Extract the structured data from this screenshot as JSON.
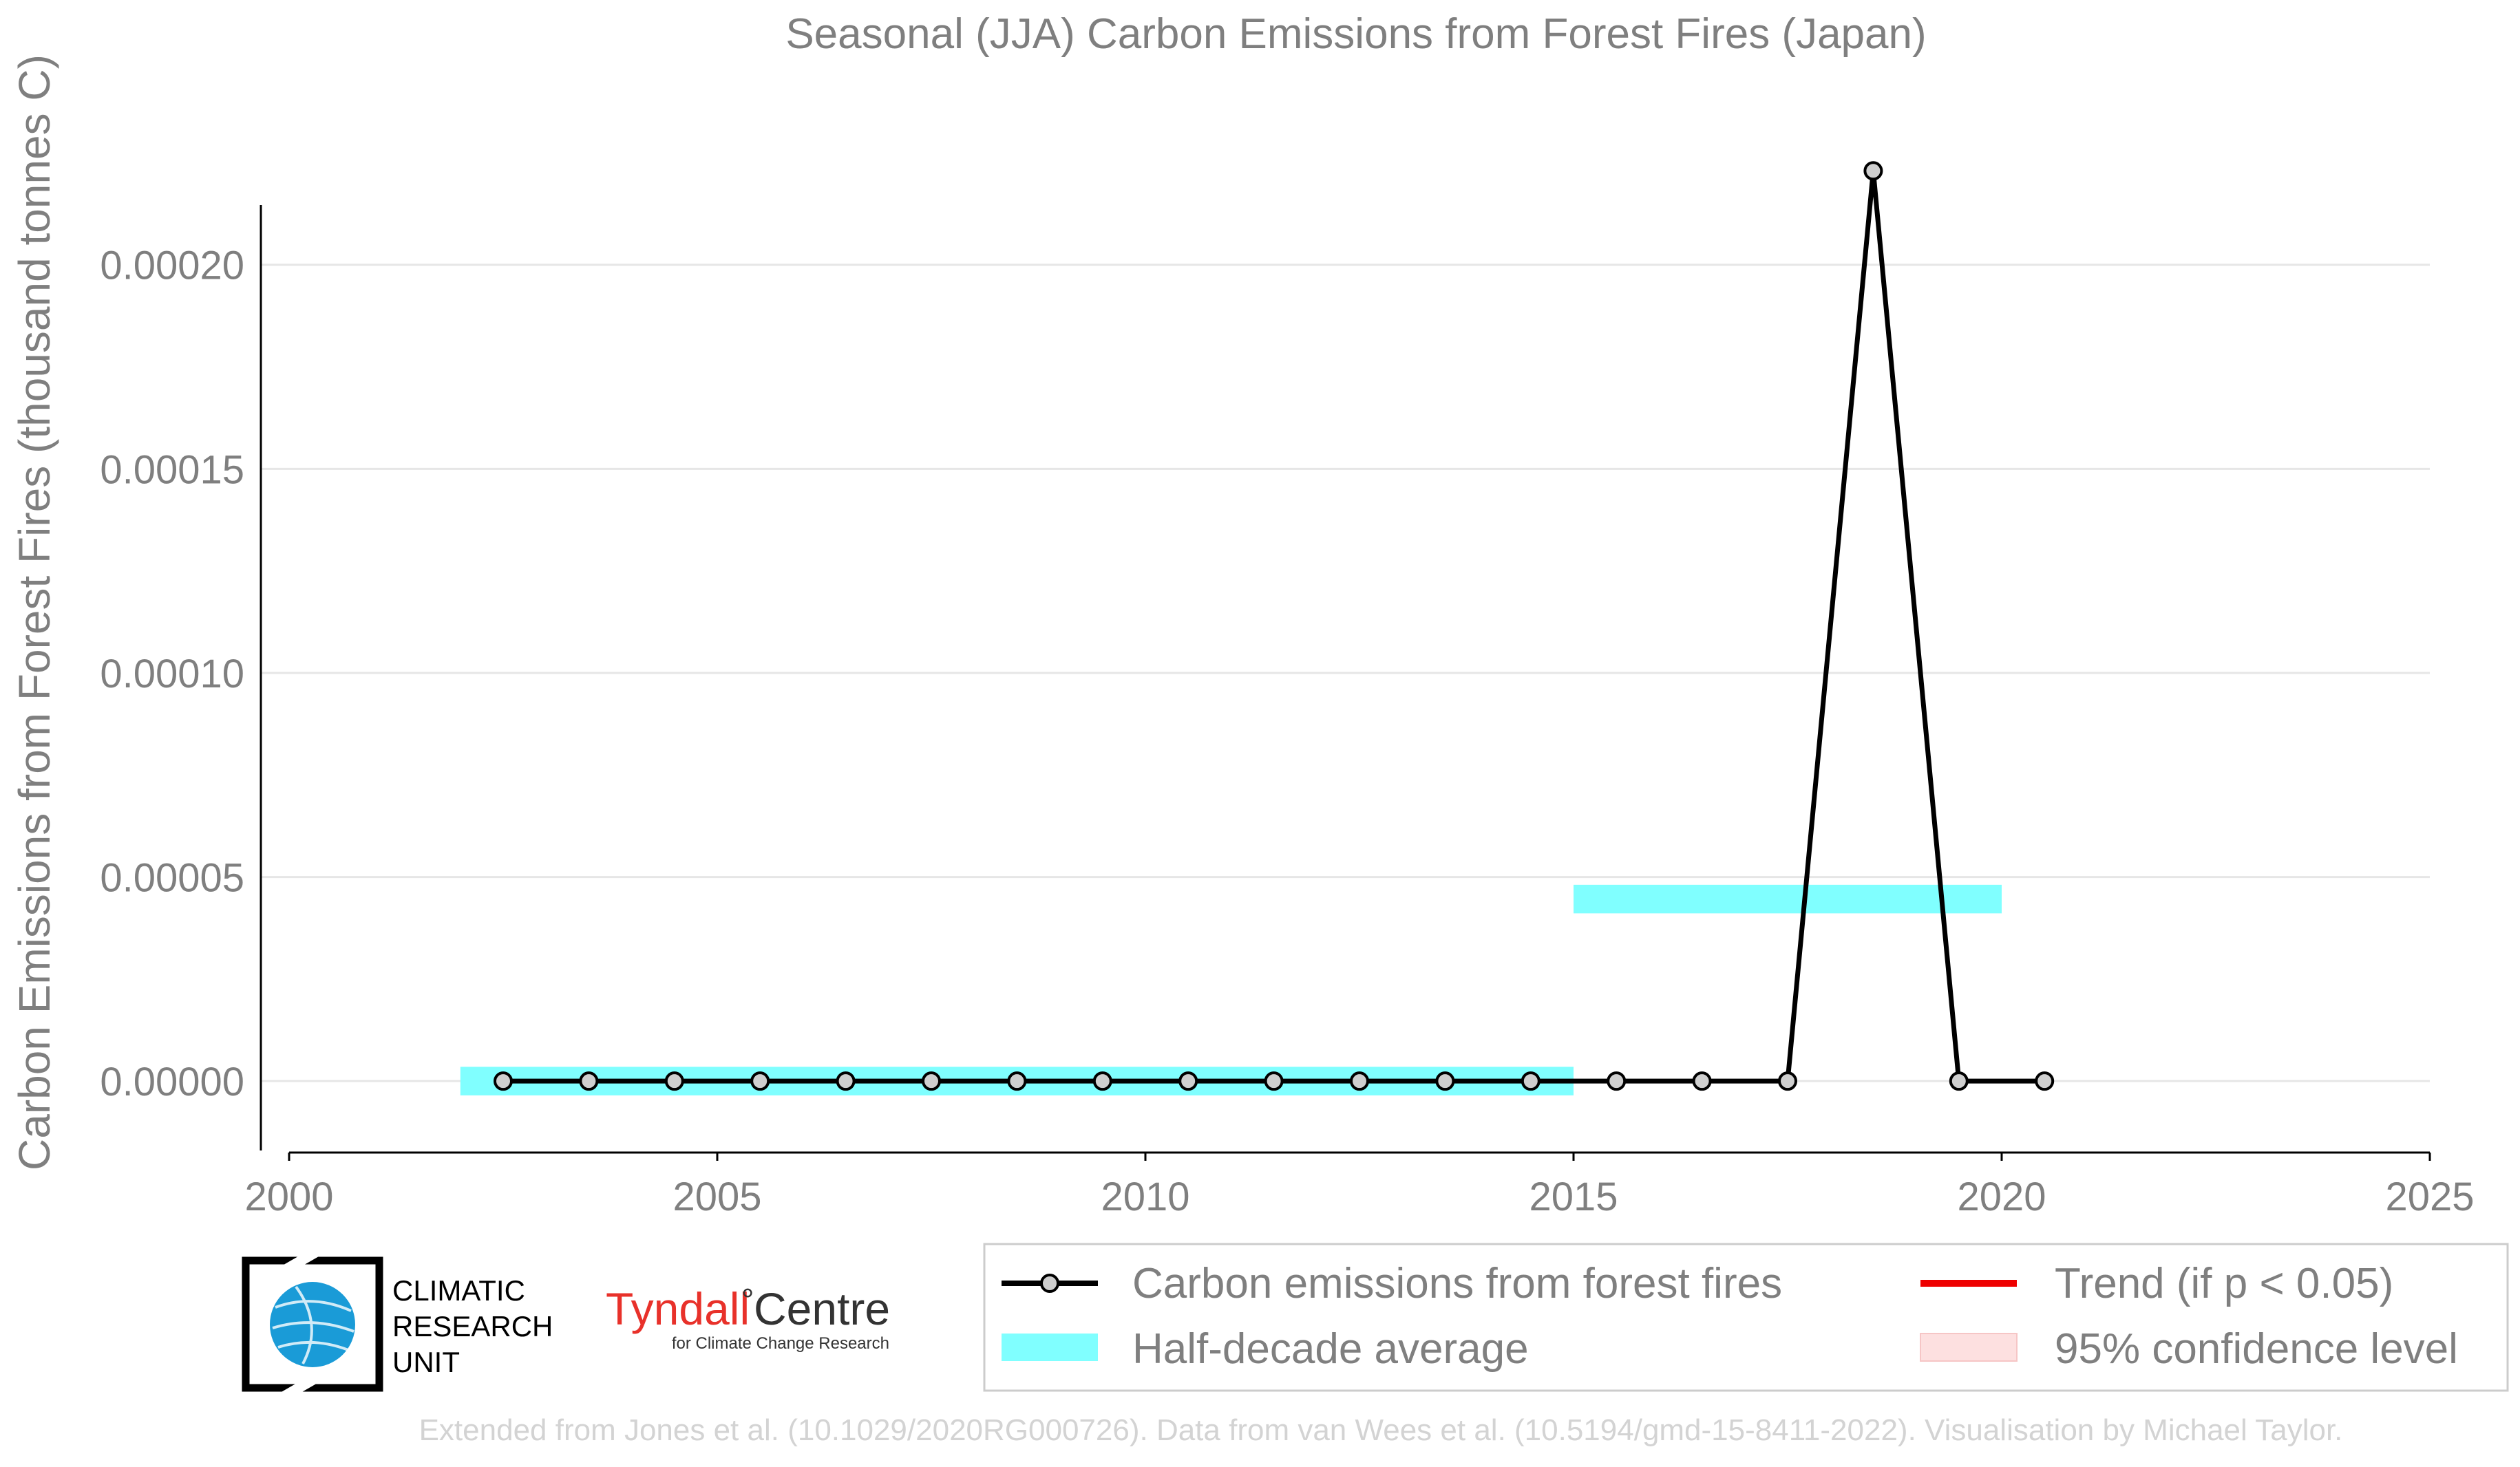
{
  "chart_data": {
    "type": "line",
    "title": "Seasonal (JJA) Carbon Emissions from Forest Fires (Japan)",
    "xlabel": "",
    "ylabel": "Carbon Emissions from Forest Fires (thousand tonnes C)",
    "xlim": [
      2000,
      2025
    ],
    "ylim": [
      -1.75e-05,
      0.000248
    ],
    "x_ticks": [
      "2000",
      "2005",
      "2010",
      "2015",
      "2020",
      "2025"
    ],
    "y_ticks": [
      "0.00000",
      "0.00005",
      "0.00010",
      "0.00015",
      "0.00020"
    ],
    "grid": "horizontal",
    "legend_position": "bottom-right",
    "series": [
      {
        "name": "Carbon emissions from forest fires",
        "color": "#000000",
        "marker": "circle",
        "x": [
          2002.5,
          2003.5,
          2004.5,
          2005.5,
          2006.5,
          2007.5,
          2008.5,
          2009.5,
          2010.5,
          2011.5,
          2012.5,
          2013.5,
          2014.5,
          2015.5,
          2016.5,
          2017.5,
          2018.5,
          2019.5,
          2020.5
        ],
        "y": [
          0,
          0,
          0,
          0,
          0,
          0,
          0,
          0,
          0,
          0,
          0,
          0,
          0,
          0,
          0,
          0,
          0.000223,
          0,
          0
        ]
      }
    ],
    "half_decade_average": {
      "name": "Half-decade average",
      "color": "#80ffff",
      "segments": [
        {
          "x_start": 2002,
          "x_end": 2015,
          "value": 0
        },
        {
          "x_start": 2015,
          "x_end": 2020,
          "value": 4.46e-05
        }
      ]
    },
    "legend": [
      {
        "label": "Carbon emissions from forest fires",
        "symbol": "line-marker",
        "color": "#000000"
      },
      {
        "label": "Half-decade average",
        "symbol": "patch",
        "color": "#80ffff"
      },
      {
        "label": "Trend (if p < 0.05)",
        "symbol": "line",
        "color": "#ee0000"
      },
      {
        "label": "95% confidence level",
        "symbol": "patch",
        "color": "#fde0e0"
      }
    ]
  },
  "logos": {
    "cru": [
      "CLIMATIC",
      "RESEARCH",
      "UNIT"
    ],
    "tyndall_name": "Tyndall",
    "tyndall_degree": "°",
    "tyndall_centre": "Centre",
    "tyndall_sub": "for Climate Change Research"
  },
  "credit": "Extended from Jones et al. (10.1029/2020RG000726). Data from van Wees et al. (10.5194/gmd-15-8411-2022). Visualisation by Michael Taylor.",
  "colors": {
    "text": "#7f7f7f",
    "grid": "#e6e6e6",
    "axis": "#000000",
    "credit": "#d3d3d3",
    "cru_globe": "#1a9bd7",
    "tyndall_red": "#e8312a"
  }
}
